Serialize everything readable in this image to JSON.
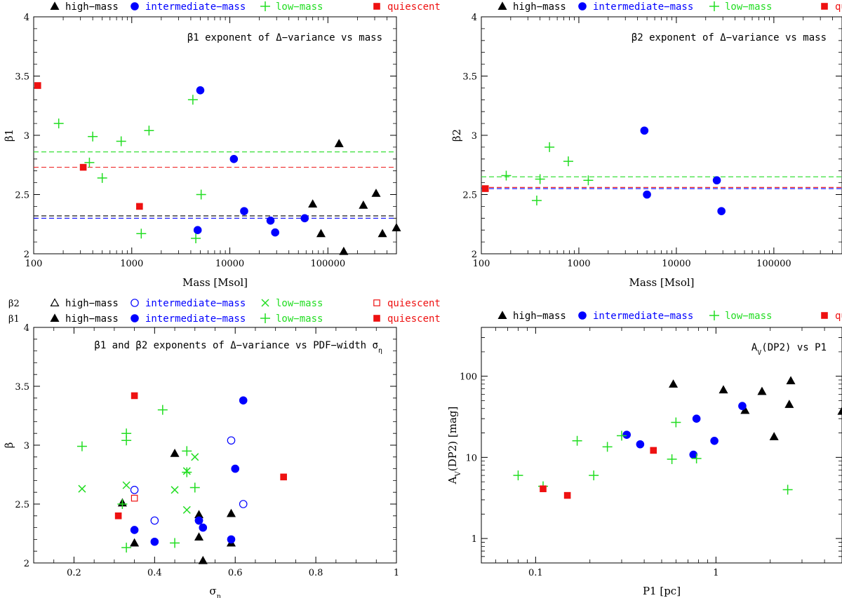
{
  "colors": {
    "high": "#000000",
    "intermediate": "#0000ff",
    "low": "#22dd22",
    "quiescent": "#ee1111"
  },
  "legend_labels": {
    "high": "high−mass",
    "intermediate": "intermediate−mass",
    "low": "low−mass",
    "quiescent": "quiescent"
  },
  "chart_data": [
    {
      "type": "scatter",
      "annotation": "β1 exponent of Δ−variance vs mass",
      "xlabel": "Mass [Msol]",
      "ylabel": "β1",
      "xscale": "log",
      "xlim": [
        100,
        500000
      ],
      "ylim": [
        2,
        4
      ],
      "xticks": [
        {
          "v": 100,
          "t": "100"
        },
        {
          "v": 1000,
          "t": "1000"
        },
        {
          "v": 10000,
          "t": "10000"
        },
        {
          "v": 100000,
          "t": "100000"
        }
      ],
      "yticks": [
        {
          "v": 2,
          "t": "2"
        },
        {
          "v": 2.5,
          "t": "2.5"
        },
        {
          "v": 3,
          "t": "3"
        },
        {
          "v": 3.5,
          "t": "3.5"
        },
        {
          "v": 4,
          "t": "4"
        }
      ],
      "legend": [
        {
          "row": null,
          "items": [
            {
              "g": "high",
              "m": "triangle"
            },
            {
              "g": "intermediate",
              "m": "circle"
            },
            {
              "g": "low",
              "m": "plus"
            },
            {
              "g": "quiescent",
              "m": "square"
            }
          ]
        }
      ],
      "hlines": [
        {
          "g": "low",
          "y": 2.86
        },
        {
          "g": "quiescent",
          "y": 2.73
        },
        {
          "g": "high",
          "y": 2.32
        },
        {
          "g": "intermediate",
          "y": 2.3
        }
      ],
      "series": [
        {
          "g": "high",
          "m": "triangle",
          "x": [
            70000,
            85000,
            130000,
            145000,
            230000,
            310000,
            360000,
            500000
          ],
          "y": [
            2.42,
            2.17,
            2.93,
            2.02,
            2.41,
            2.51,
            2.17,
            2.22
          ]
        },
        {
          "g": "intermediate",
          "m": "circle",
          "x": [
            4700,
            5000,
            11000,
            14000,
            26000,
            29000,
            58000
          ],
          "y": [
            2.2,
            3.38,
            2.8,
            2.36,
            2.28,
            2.18,
            2.3
          ]
        },
        {
          "g": "low",
          "m": "plus",
          "x": [
            180,
            370,
            400,
            500,
            780,
            1250,
            1500,
            4200,
            4500,
            5100
          ],
          "y": [
            3.1,
            2.77,
            2.99,
            2.64,
            2.95,
            2.17,
            3.04,
            3.3,
            2.13,
            2.5
          ]
        },
        {
          "g": "quiescent",
          "m": "square",
          "x": [
            110,
            320,
            1200
          ],
          "y": [
            3.42,
            2.73,
            2.4
          ]
        }
      ]
    },
    {
      "type": "scatter",
      "annotation": "β2 exponent of Δ−variance vs mass",
      "xlabel": "Mass [Msol]",
      "ylabel": "β2",
      "xscale": "log",
      "xlim": [
        100,
        500000
      ],
      "ylim": [
        2,
        4
      ],
      "xticks": [
        {
          "v": 100,
          "t": "100"
        },
        {
          "v": 1000,
          "t": "1000"
        },
        {
          "v": 10000,
          "t": "10000"
        },
        {
          "v": 100000,
          "t": "100000"
        }
      ],
      "yticks": [
        {
          "v": 2,
          "t": "2"
        },
        {
          "v": 2.5,
          "t": "2.5"
        },
        {
          "v": 3,
          "t": "3"
        },
        {
          "v": 3.5,
          "t": "3.5"
        },
        {
          "v": 4,
          "t": "4"
        }
      ],
      "legend": [
        {
          "row": null,
          "items": [
            {
              "g": "high",
              "m": "triangle"
            },
            {
              "g": "intermediate",
              "m": "circle"
            },
            {
              "g": "low",
              "m": "plus"
            },
            {
              "g": "quiescent",
              "m": "square"
            }
          ]
        }
      ],
      "hlines": [
        {
          "g": "low",
          "y": 2.65
        },
        {
          "g": "quiescent",
          "y": 2.56
        },
        {
          "g": "intermediate",
          "y": 2.55
        }
      ],
      "series": [
        {
          "g": "intermediate",
          "m": "circle",
          "x": [
            4700,
            5000,
            26000,
            29000
          ],
          "y": [
            3.04,
            2.5,
            2.62,
            2.36
          ]
        },
        {
          "g": "low",
          "m": "plus",
          "x": [
            180,
            370,
            400,
            500,
            780,
            1250
          ],
          "y": [
            2.66,
            2.45,
            2.63,
            2.9,
            2.78,
            2.62
          ]
        },
        {
          "g": "quiescent",
          "m": "square",
          "x": [
            110
          ],
          "y": [
            2.55
          ]
        }
      ]
    },
    {
      "type": "scatter",
      "annotation": "β1 and β2 exponents of Δ−variance vs PDF−width σ",
      "annotation_sub": "η",
      "xlabel": "σ",
      "xlabel_sub": "η",
      "ylabel": "β",
      "xscale": "linear",
      "xlim": [
        0.1,
        1.0
      ],
      "ylim": [
        2,
        4
      ],
      "xticks": [
        {
          "v": 0.2,
          "t": "0.2"
        },
        {
          "v": 0.4,
          "t": "0.4"
        },
        {
          "v": 0.6,
          "t": "0.6"
        },
        {
          "v": 0.8,
          "t": "0.8"
        },
        {
          "v": 1.0,
          "t": "1"
        }
      ],
      "yticks": [
        {
          "v": 2,
          "t": "2"
        },
        {
          "v": 2.5,
          "t": "2.5"
        },
        {
          "v": 3,
          "t": "3"
        },
        {
          "v": 3.5,
          "t": "3.5"
        },
        {
          "v": 4,
          "t": "4"
        }
      ],
      "legend": [
        {
          "row": "β2",
          "items": [
            {
              "g": "high",
              "m": "triangle-open"
            },
            {
              "g": "intermediate",
              "m": "circle-open"
            },
            {
              "g": "low",
              "m": "cross"
            },
            {
              "g": "quiescent",
              "m": "square-open"
            }
          ]
        },
        {
          "row": "β1",
          "items": [
            {
              "g": "high",
              "m": "triangle"
            },
            {
              "g": "intermediate",
              "m": "circle"
            },
            {
              "g": "low",
              "m": "plus"
            },
            {
              "g": "quiescent",
              "m": "square"
            }
          ]
        }
      ],
      "hlines": [],
      "series": [
        {
          "g": "high",
          "m": "triangle",
          "x": [
            0.32,
            0.35,
            0.45,
            0.51,
            0.51,
            0.52,
            0.59,
            0.59
          ],
          "y": [
            2.51,
            2.17,
            2.93,
            2.41,
            2.22,
            2.02,
            2.42,
            2.17
          ]
        },
        {
          "g": "intermediate",
          "m": "circle",
          "x": [
            0.35,
            0.4,
            0.51,
            0.52,
            0.59,
            0.6,
            0.62
          ],
          "y": [
            2.28,
            2.18,
            2.36,
            2.3,
            2.2,
            2.8,
            3.38
          ]
        },
        {
          "g": "low",
          "m": "plus",
          "x": [
            0.22,
            0.32,
            0.33,
            0.33,
            0.33,
            0.42,
            0.45,
            0.48,
            0.48,
            0.5
          ],
          "y": [
            2.99,
            2.5,
            2.13,
            3.1,
            3.04,
            3.3,
            2.17,
            2.95,
            2.77,
            2.64
          ]
        },
        {
          "g": "quiescent",
          "m": "square",
          "x": [
            0.31,
            0.35,
            0.72
          ],
          "y": [
            2.4,
            3.42,
            2.73
          ]
        },
        {
          "g": "intermediate",
          "m": "circle-open",
          "x": [
            0.35,
            0.4,
            0.51,
            0.59,
            0.62
          ],
          "y": [
            2.62,
            2.36,
            2.36,
            3.04,
            2.5
          ]
        },
        {
          "g": "low",
          "m": "cross",
          "x": [
            0.22,
            0.33,
            0.45,
            0.48,
            0.48,
            0.5
          ],
          "y": [
            2.63,
            2.66,
            2.62,
            2.45,
            2.78,
            2.9
          ]
        },
        {
          "g": "quiescent",
          "m": "square-open",
          "x": [
            0.35
          ],
          "y": [
            2.55
          ]
        }
      ]
    },
    {
      "type": "scatter",
      "annotation": "A",
      "annotation_sub": "V",
      "annotation_rest": "(DP2) vs P1",
      "xlabel": "P1 [pc]",
      "ylabel": "A",
      "ylabel_sub": "V",
      "ylabel_rest": "(DP2) [mag]",
      "xscale": "log",
      "yscale": "log",
      "xlim": [
        0.05,
        5
      ],
      "ylim": [
        0.5,
        400
      ],
      "xticks": [
        {
          "v": 0.1,
          "t": "0.1"
        },
        {
          "v": 1,
          "t": "1"
        }
      ],
      "yticks": [
        {
          "v": 1,
          "t": "1"
        },
        {
          "v": 10,
          "t": "10"
        },
        {
          "v": 100,
          "t": "100"
        }
      ],
      "legend": [
        {
          "row": null,
          "items": [
            {
              "g": "high",
              "m": "triangle"
            },
            {
              "g": "intermediate",
              "m": "circle"
            },
            {
              "g": "low",
              "m": "plus"
            },
            {
              "g": "quiescent",
              "m": "square"
            }
          ]
        }
      ],
      "hlines": [],
      "series": [
        {
          "g": "high",
          "m": "triangle",
          "x": [
            0.58,
            1.1,
            1.45,
            1.8,
            2.1,
            2.55,
            2.6,
            5.0
          ],
          "y": [
            80,
            68,
            38,
            65,
            18,
            45,
            88,
            37
          ]
        },
        {
          "g": "intermediate",
          "m": "circle",
          "x": [
            0.32,
            0.38,
            0.75,
            0.78,
            0.98,
            1.4
          ],
          "y": [
            19,
            14.5,
            10.8,
            30,
            16,
            43
          ]
        },
        {
          "g": "low",
          "m": "plus",
          "x": [
            0.08,
            0.11,
            0.17,
            0.21,
            0.25,
            0.3,
            0.57,
            0.6,
            0.78,
            2.5
          ],
          "y": [
            6,
            4.4,
            16,
            6,
            13.5,
            18.5,
            9.5,
            27,
            9.7,
            4
          ]
        },
        {
          "g": "quiescent",
          "m": "square",
          "x": [
            0.11,
            0.15,
            0.45
          ],
          "y": [
            4.1,
            3.4,
            12.2
          ]
        }
      ]
    }
  ]
}
